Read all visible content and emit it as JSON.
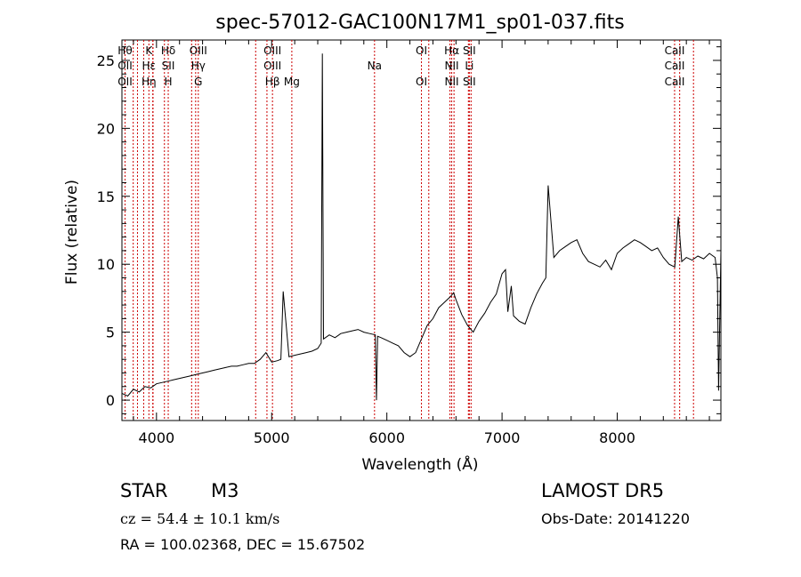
{
  "chart_data": {
    "type": "line",
    "title": "spec-57012-GAC100N17M1_sp01-037.fits",
    "xlabel": "Wavelength (Å)",
    "ylabel": "Flux (relative)",
    "xlim": [
      3700,
      8900
    ],
    "ylim": [
      -1.5,
      26.5
    ],
    "xticks": [
      4000,
      5000,
      6000,
      7000,
      8000
    ],
    "yticks": [
      0,
      5,
      10,
      15,
      20,
      25
    ],
    "grid": false,
    "line_color": "#000000",
    "marker_color": "#cc0000",
    "series": [
      {
        "x": [
          3700,
          3750,
          3800,
          3850,
          3900,
          3950,
          4000,
          4050,
          4100,
          4150,
          4200,
          4250,
          4300,
          4350,
          4400,
          4450,
          4500,
          4550,
          4600,
          4650,
          4700,
          4750,
          4800,
          4850,
          4900,
          4950,
          5000,
          5050,
          5080,
          5100,
          5150,
          5200,
          5250,
          5300,
          5350,
          5400,
          5430,
          5440,
          5450,
          5500,
          5550,
          5600,
          5650,
          5700,
          5750,
          5800,
          5850,
          5900,
          5910,
          5920,
          5950,
          6000,
          6050,
          6100,
          6150,
          6200,
          6250,
          6300,
          6350,
          6400,
          6450,
          6500,
          6550,
          6580,
          6600,
          6650,
          6700,
          6750,
          6800,
          6850,
          6900,
          6950,
          7000,
          7030,
          7050,
          7080,
          7100,
          7150,
          7200,
          7250,
          7300,
          7350,
          7380,
          7400,
          7450,
          7500,
          7550,
          7600,
          7650,
          7700,
          7750,
          7800,
          7850,
          7900,
          7950,
          8000,
          8050,
          8100,
          8150,
          8200,
          8250,
          8300,
          8350,
          8400,
          8450,
          8500,
          8530,
          8560,
          8600,
          8650,
          8700,
          8750,
          8800,
          8850,
          8870,
          8880,
          8900
        ],
        "y": [
          0.5,
          0.3,
          0.8,
          0.6,
          1.0,
          0.9,
          1.2,
          1.3,
          1.4,
          1.5,
          1.6,
          1.7,
          1.8,
          1.9,
          2.0,
          2.1,
          2.2,
          2.3,
          2.4,
          2.5,
          2.5,
          2.6,
          2.7,
          2.7,
          3.0,
          3.5,
          2.8,
          2.9,
          3.0,
          8.0,
          3.2,
          3.3,
          3.4,
          3.5,
          3.6,
          3.8,
          4.2,
          25.5,
          4.5,
          4.8,
          4.6,
          4.9,
          5.0,
          5.1,
          5.2,
          5.0,
          4.9,
          4.8,
          0.0,
          4.7,
          4.6,
          4.4,
          4.2,
          4.0,
          3.5,
          3.2,
          3.5,
          4.5,
          5.5,
          6.0,
          6.8,
          7.2,
          7.6,
          7.9,
          7.4,
          6.3,
          5.5,
          5.0,
          5.8,
          6.4,
          7.2,
          7.8,
          9.3,
          9.6,
          6.5,
          8.4,
          6.2,
          5.8,
          5.6,
          6.8,
          7.8,
          8.6,
          9.0,
          15.8,
          10.5,
          11.0,
          11.3,
          11.6,
          11.8,
          10.8,
          10.2,
          10.0,
          9.8,
          10.3,
          9.6,
          10.8,
          11.2,
          11.5,
          11.8,
          11.6,
          11.3,
          11.0,
          11.2,
          10.5,
          10.0,
          9.8,
          13.5,
          10.2,
          10.5,
          10.3,
          10.6,
          10.4,
          10.8,
          10.5,
          9.0,
          0.7,
          10.9
        ]
      }
    ],
    "lines": [
      {
        "row1": "Hθ",
        "row2": "OII",
        "row3": "OII",
        "wl": [
          3727,
          3798,
          3835
        ]
      },
      {
        "row1": "K",
        "row2": "Hε",
        "row3": "Hη",
        "wl": [
          3934,
          3889,
          3970
        ]
      },
      {
        "row1": "Hδ",
        "row2": "SII",
        "row3": "H",
        "wl": [
          4102,
          4069,
          3968
        ]
      },
      {
        "row1": "OIII",
        "row2": "Hγ",
        "row3": "G",
        "wl": [
          4363,
          4340,
          4305
        ]
      },
      {
        "row1": "OIII",
        "row2": "OIII",
        "row3": "Hβ",
        "wl": [
          5007,
          4959,
          4861
        ]
      },
      {
        "row3": "Mg",
        "wl": [
          5175
        ]
      },
      {
        "row2": "Na",
        "wl": [
          5893
        ]
      },
      {
        "row1": "OI",
        "row3": "OI",
        "wl": [
          6300,
          6364
        ]
      },
      {
        "row1": "Hα",
        "row2": "NII",
        "row3": "NII",
        "wl": [
          6563,
          6548,
          6583
        ]
      },
      {
        "row1": "SII",
        "row2": "Li",
        "row3": "SII",
        "wl": [
          6716,
          6708,
          6731
        ]
      },
      {
        "row1": "CaII",
        "row2": "CaII",
        "row3": "CaII",
        "wl": [
          8498,
          8542,
          8662
        ]
      }
    ]
  },
  "info": {
    "class_label": "STAR",
    "subclass": "M3",
    "survey": "LAMOST  DR5",
    "cz": "cz = 54.4 ± 10.1 km/s",
    "obs_date": "Obs-Date: 20141220",
    "coords": "RA = 100.02368, DEC =  15.67502"
  }
}
